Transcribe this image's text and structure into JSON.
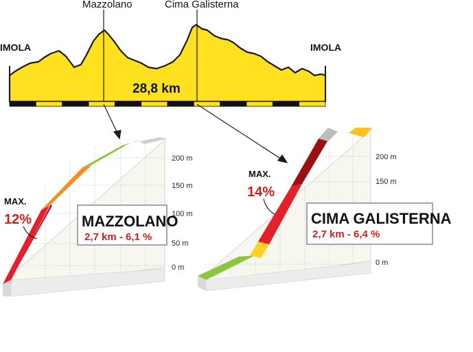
{
  "overview": {
    "start_label": "IMOLA",
    "finish_label": "IMOLA",
    "climb1_name": "Mazzolano",
    "climb2_name": "Cima Galisterna",
    "distance": "28,8 km",
    "fill_color": "#ffe11f",
    "km_bar_colors": [
      "#111111",
      "#ffe11f"
    ]
  },
  "climb1": {
    "title": "MAZZOLANO",
    "stats": "2,7 km - 6,1 %",
    "max_label": "MAX.",
    "max_value": "12%",
    "axis_ticks": [
      "200 m",
      "150 m",
      "100 m",
      "50 m",
      "0 m"
    ]
  },
  "climb2": {
    "title": "CIMA GALISTERNA",
    "stats": "2,7 km - 6,4 %",
    "max_label": "MAX.",
    "max_value": "14%",
    "axis_ticks": [
      "200 m",
      "150 m",
      "0 m"
    ]
  },
  "gradient_colors": {
    "green": "#8cc63f",
    "yellow": "#ffd21f",
    "orange": "#f39021",
    "red": "#e4202a",
    "dark_red": "#9b1010",
    "grey": "#bdbdbd"
  }
}
